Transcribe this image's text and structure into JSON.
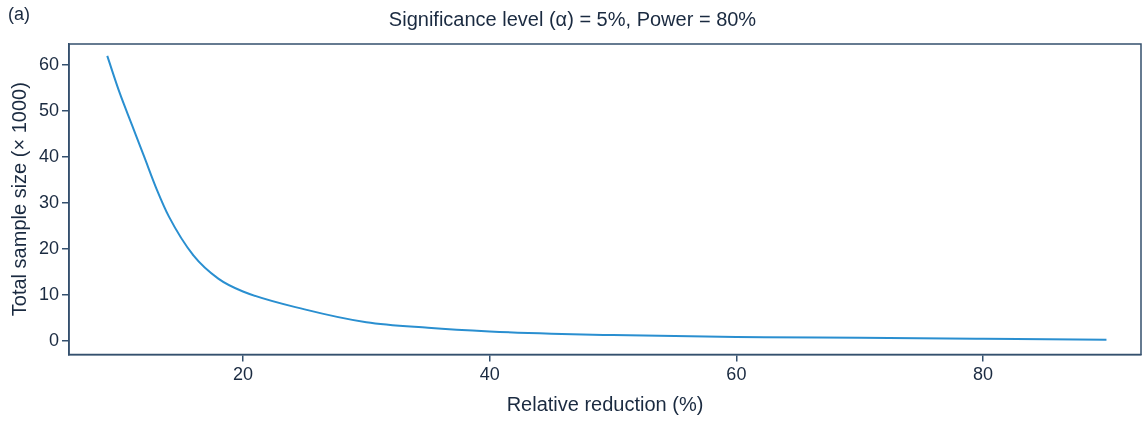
{
  "chart_data": {
    "type": "line",
    "title": "Significance level (α) = 5%, Power = 80%",
    "xlabel": "Relative reduction (%)",
    "ylabel": "Total sample size (× 1000)",
    "annotations": [
      "(a)"
    ],
    "x": [
      9,
      10,
      11,
      12,
      13,
      14,
      16,
      18,
      20,
      25,
      30,
      35,
      40,
      45,
      50,
      60,
      70,
      80,
      90
    ],
    "series": [
      {
        "color": "#2a8fd0",
        "values": [
          62,
          54,
          47,
          40,
          33,
          27,
          18.5,
          13.5,
          10.7,
          6.8,
          4,
          2.8,
          2,
          1.5,
          1.2,
          0.8,
          0.6,
          0.4,
          0.2
        ]
      }
    ],
    "xlim": [
      5.9,
      92.8
    ],
    "xticks": [
      20,
      40,
      60,
      80
    ],
    "ylim": [
      -3,
      64.6
    ],
    "yticks": [
      0,
      10,
      20,
      30,
      40,
      50,
      60
    ],
    "grid": false,
    "legend": false,
    "marker": "none",
    "line_style": "solid"
  }
}
